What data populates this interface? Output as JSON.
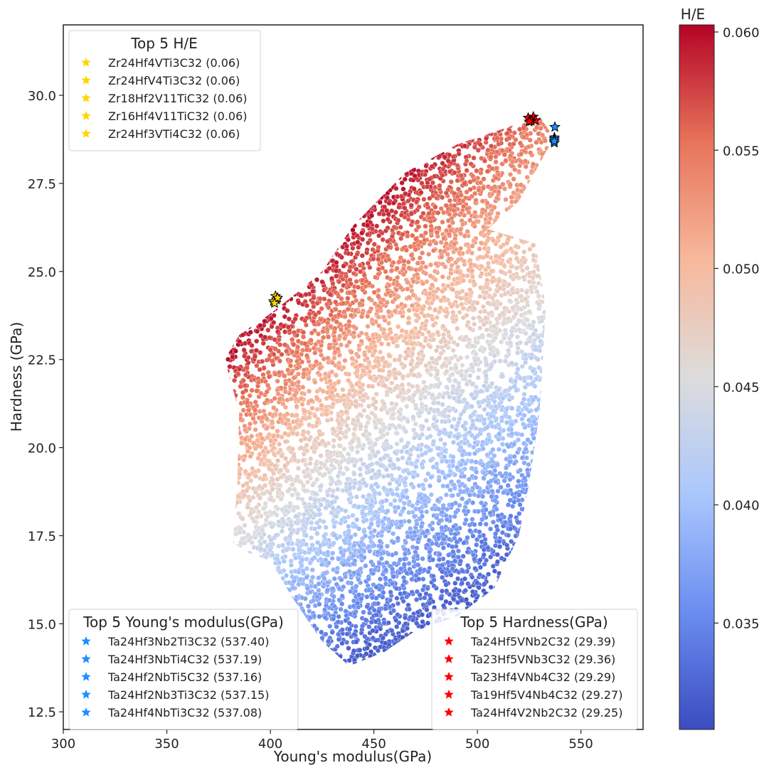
{
  "chart_data": {
    "type": "scatter",
    "xlabel": "Young's modulus(GPa)",
    "ylabel": "Hardness (GPa)",
    "xlim": [
      300,
      580
    ],
    "ylim": [
      12.0,
      32.0
    ],
    "xticks": [
      300,
      350,
      400,
      450,
      500,
      550
    ],
    "xtick_labels": [
      "300",
      "350",
      "400",
      "450",
      "500",
      "550"
    ],
    "yticks": [
      12.5,
      15.0,
      17.5,
      20.0,
      22.5,
      25.0,
      27.5,
      30.0
    ],
    "ytick_labels": [
      "12.5",
      "15.0",
      "17.5",
      "20.0",
      "22.5",
      "25.0",
      "27.5",
      "30.0"
    ],
    "grid": false,
    "colorbar": {
      "label": "H/E",
      "colormap": "coolwarm",
      "range": [
        0.0305,
        0.0603
      ],
      "ticks": [
        0.035,
        0.04,
        0.045,
        0.05,
        0.055,
        0.06
      ],
      "tick_labels": [
        "0.035",
        "0.040",
        "0.045",
        "0.050",
        "0.055",
        "0.060"
      ],
      "colors": [
        "#3b4cc0",
        "#6b8df0",
        "#aac7fd",
        "#dddcdc",
        "#f7b89c",
        "#e7745b",
        "#b40426"
      ]
    },
    "point_cloud": {
      "description_values": "dense cloud of compositions, H/E increases toward upper-left",
      "boundary": [
        [
          385,
          21.0
        ],
        [
          378,
          22.5
        ],
        [
          385,
          23.2
        ],
        [
          400,
          23.8
        ],
        [
          415,
          24.5
        ],
        [
          425,
          25.0
        ],
        [
          440,
          26.3
        ],
        [
          465,
          27.8
        ],
        [
          490,
          28.6
        ],
        [
          510,
          29.0
        ],
        [
          530,
          29.4
        ],
        [
          537,
          28.8
        ],
        [
          520,
          27.0
        ],
        [
          505,
          26.2
        ],
        [
          528,
          25.8
        ],
        [
          533,
          24.0
        ],
        [
          530,
          21.0
        ],
        [
          525,
          19.0
        ],
        [
          520,
          17.5
        ],
        [
          508,
          16.0
        ],
        [
          490,
          15.2
        ],
        [
          470,
          14.8
        ],
        [
          455,
          14.2
        ],
        [
          438,
          13.8
        ],
        [
          425,
          14.5
        ],
        [
          410,
          15.8
        ],
        [
          400,
          16.8
        ],
        [
          390,
          17.0
        ],
        [
          382,
          17.3
        ],
        [
          384,
          19.0
        ]
      ],
      "count_est": 60000
    },
    "highlight_series": [
      {
        "name": "Top 5 H/E",
        "color": "#FFD700",
        "marker": "star",
        "labels": [
          "Zr24Hf4VTi3C32 (0.06)",
          "Zr24HfV4Ti3C32 (0.06)",
          "Zr18Hf2V11TiC32 (0.06)",
          "Zr16Hf4V11TiC32 (0.06)",
          "Zr24Hf3VTi4C32 (0.06)"
        ],
        "points": [
          [
            402.5,
            24.3
          ],
          [
            403.0,
            24.2
          ],
          [
            401.5,
            24.15
          ],
          [
            403.5,
            24.25
          ],
          [
            402.0,
            24.1
          ]
        ],
        "legend_position": "upper-left"
      },
      {
        "name": "Top 5 Young's modulus(GPa)",
        "color": "#1E90FF",
        "marker": "star",
        "labels": [
          "Ta24Hf3Nb2Ti3C32 (537.40)",
          "Ta24Hf3NbTi4C32 (537.19)",
          "Ta24Hf2NbTi5C32 (537.16)",
          "Ta24Hf2Nb3Ti3C32 (537.15)",
          "Ta24Hf4NbTi3C32 (537.08)"
        ],
        "points": [
          [
            537.4,
            29.1
          ],
          [
            537.19,
            28.8
          ],
          [
            537.16,
            28.75
          ],
          [
            537.15,
            28.65
          ],
          [
            537.08,
            28.7
          ]
        ],
        "legend_position": "lower-left"
      },
      {
        "name": "Top 5 Hardness(GPa)",
        "color": "#FF0000",
        "marker": "star",
        "labels": [
          "Ta24Hf5VNb2C32 (29.39)",
          "Ta23Hf5VNb3C32 (29.36)",
          "Ta23Hf4VNb4C32 (29.29)",
          "Ta19Hf5V4Nb4C32 (29.27)",
          "Ta24Hf4V2Nb2C32 (29.25)"
        ],
        "points": [
          [
            527.0,
            29.39
          ],
          [
            524.5,
            29.36
          ],
          [
            528.0,
            29.29
          ],
          [
            526.0,
            29.27
          ],
          [
            525.0,
            29.25
          ]
        ],
        "legend_position": "lower-right"
      }
    ]
  }
}
